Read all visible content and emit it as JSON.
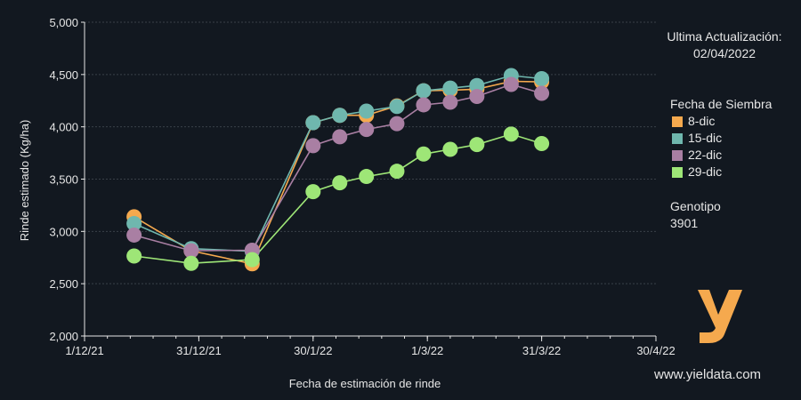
{
  "chart_data": {
    "type": "line",
    "xlabel": "Fecha de estimación de rinde",
    "ylabel": "Rinde estimado (Kg/ha)",
    "ylim": [
      2000,
      5000
    ],
    "yticks": [
      2000,
      2500,
      3000,
      3500,
      4000,
      4500,
      5000
    ],
    "ytick_labels": [
      "2,000",
      "2,500",
      "3,000",
      "3,500",
      "4,000",
      "4,500",
      "5,000"
    ],
    "xlim": [
      "2021-12-01",
      "2022-04-30"
    ],
    "xticks": [
      "2021-12-01",
      "2021-12-31",
      "2022-01-30",
      "2022-03-01",
      "2022-03-31",
      "2022-04-30"
    ],
    "xtick_labels": [
      "1/12/21",
      "31/12/21",
      "30/1/22",
      "1/3/22",
      "31/3/22",
      "30/4/22"
    ],
    "grid": "horizontal",
    "legend_title": "Fecha de Siembra",
    "legend_position": "right",
    "series": [
      {
        "name": "8-dic",
        "color": "#f5a94e",
        "points": [
          {
            "x": "2021-12-14",
            "y": 3140
          },
          {
            "x": "2021-12-29",
            "y": 2815
          },
          {
            "x": "2022-01-14",
            "y": 2690
          },
          {
            "x": "2022-01-30",
            "y": 4040
          },
          {
            "x": "2022-02-06",
            "y": 4110
          },
          {
            "x": "2022-02-13",
            "y": 4110
          },
          {
            "x": "2022-02-21",
            "y": 4200
          },
          {
            "x": "2022-02-28",
            "y": 4345
          },
          {
            "x": "2022-03-07",
            "y": 4350
          },
          {
            "x": "2022-03-14",
            "y": 4360
          },
          {
            "x": "2022-03-23",
            "y": 4435
          },
          {
            "x": "2022-03-31",
            "y": 4430
          }
        ]
      },
      {
        "name": "15-dic",
        "color": "#6fb7ae",
        "points": [
          {
            "x": "2021-12-14",
            "y": 3075
          },
          {
            "x": "2021-12-29",
            "y": 2835
          },
          {
            "x": "2022-01-14",
            "y": 2810
          },
          {
            "x": "2022-01-30",
            "y": 4040
          },
          {
            "x": "2022-02-06",
            "y": 4110
          },
          {
            "x": "2022-02-13",
            "y": 4150
          },
          {
            "x": "2022-02-21",
            "y": 4195
          },
          {
            "x": "2022-02-28",
            "y": 4345
          },
          {
            "x": "2022-03-07",
            "y": 4370
          },
          {
            "x": "2022-03-14",
            "y": 4395
          },
          {
            "x": "2022-03-23",
            "y": 4490
          },
          {
            "x": "2022-03-31",
            "y": 4460
          }
        ]
      },
      {
        "name": "22-dic",
        "color": "#a97fa3",
        "points": [
          {
            "x": "2021-12-14",
            "y": 2965
          },
          {
            "x": "2021-12-29",
            "y": 2815
          },
          {
            "x": "2022-01-14",
            "y": 2820
          },
          {
            "x": "2022-01-30",
            "y": 3820
          },
          {
            "x": "2022-02-06",
            "y": 3905
          },
          {
            "x": "2022-02-13",
            "y": 3975
          },
          {
            "x": "2022-02-21",
            "y": 4030
          },
          {
            "x": "2022-02-28",
            "y": 4210
          },
          {
            "x": "2022-03-07",
            "y": 4235
          },
          {
            "x": "2022-03-14",
            "y": 4290
          },
          {
            "x": "2022-03-23",
            "y": 4405
          },
          {
            "x": "2022-03-31",
            "y": 4320
          }
        ]
      },
      {
        "name": "29-dic",
        "color": "#9ee677",
        "points": [
          {
            "x": "2021-12-14",
            "y": 2765
          },
          {
            "x": "2021-12-29",
            "y": 2695
          },
          {
            "x": "2022-01-14",
            "y": 2730
          },
          {
            "x": "2022-01-30",
            "y": 3380
          },
          {
            "x": "2022-02-06",
            "y": 3465
          },
          {
            "x": "2022-02-13",
            "y": 3525
          },
          {
            "x": "2022-02-21",
            "y": 3575
          },
          {
            "x": "2022-02-28",
            "y": 3740
          },
          {
            "x": "2022-03-07",
            "y": 3785
          },
          {
            "x": "2022-03-14",
            "y": 3830
          },
          {
            "x": "2022-03-23",
            "y": 3930
          },
          {
            "x": "2022-03-31",
            "y": 3840
          }
        ]
      }
    ]
  },
  "update": {
    "label": "Ultima Actualización:",
    "date": "02/04/2022"
  },
  "genotype": {
    "label": "Genotipo",
    "value": "3901"
  },
  "website": "www.yieldata.com",
  "colors": {
    "background": "#121820",
    "grid": "#3a4048",
    "text": "#e6e6e6",
    "logo": "#f5a94e"
  }
}
